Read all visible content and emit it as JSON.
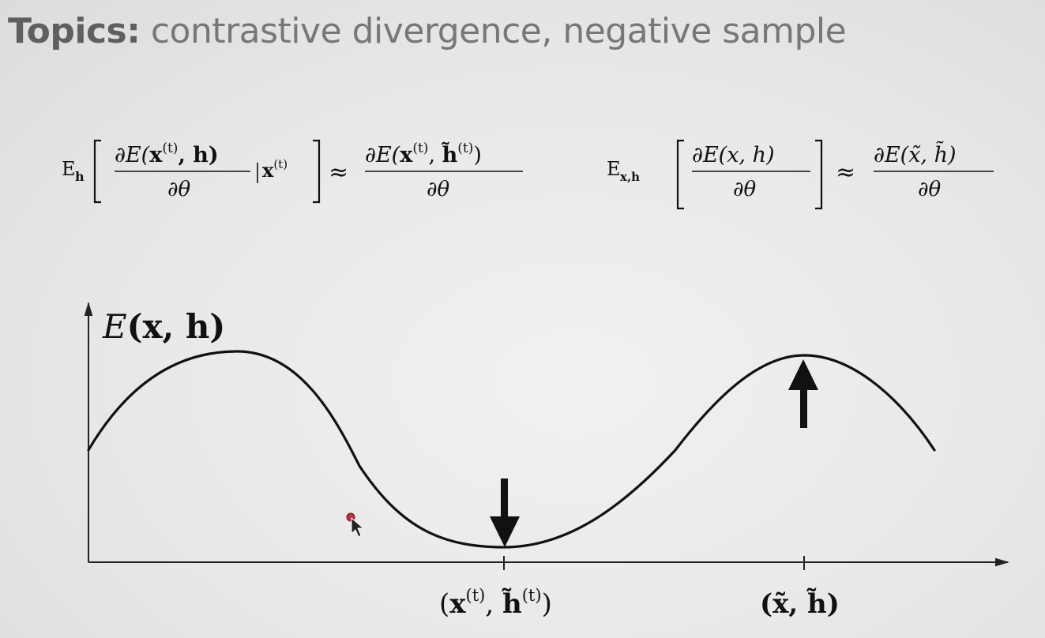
{
  "slide": {
    "title_bold": "Topics:",
    "title_rest": " contrastive divergence, negative sample"
  },
  "equations": {
    "left": {
      "expectation": "E",
      "subscript": "h",
      "numerator_a": "∂E(",
      "numerator_x": "x",
      "numerator_sup": "(t)",
      "numerator_b": ", h)",
      "denominator": "∂θ",
      "condition_x": "x",
      "condition_sup": "(t)",
      "approx": "≈",
      "rhs_numerator_a": "∂E(",
      "rhs_x": "x",
      "rhs_sup": "(t)",
      "rhs_h": "h̃",
      "rhs_h_sup": "(t)",
      "rhs_close": ")",
      "rhs_denominator": "∂θ"
    },
    "right": {
      "expectation": "E",
      "subscript": "x,h",
      "numerator": "∂E(x, h)",
      "denominator": "∂θ",
      "approx": "≈",
      "rhs_numerator": "∂E(x̃, h̃)",
      "rhs_denominator": "∂θ"
    }
  },
  "plot": {
    "y_label_E": "E",
    "y_label_args": "(x, h)",
    "tick1_label_open": "(",
    "tick1_label_x": "x",
    "tick1_label_x_sup": "(t)",
    "tick1_label_comma": ", ",
    "tick1_label_h": "h̃",
    "tick1_label_h_sup": "(t)",
    "tick1_label_close": ")",
    "tick2_label": "(x̃, h̃)",
    "arrow_down_meaning": "push energy down at data sample",
    "arrow_up_meaning": "push energy up at negative sample"
  },
  "icons": {
    "cursor": "mouse-pointer-icon"
  }
}
